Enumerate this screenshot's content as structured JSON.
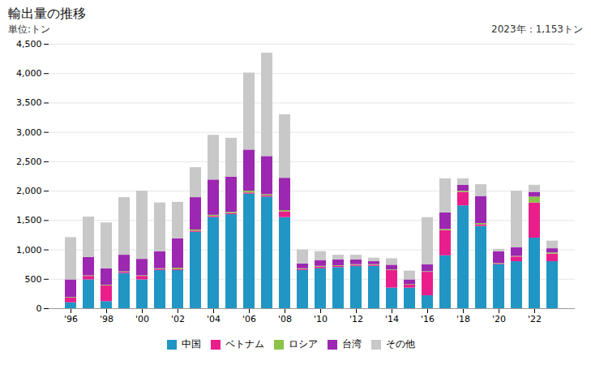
{
  "chart_data": {
    "type": "bar",
    "title": "輸出量の推移",
    "subtitle": "単位:トン",
    "annotation": "2023年：1,153トン",
    "stacked": true,
    "grid": true,
    "legend": "bottom",
    "categories": [
      "'96",
      null,
      "'98",
      null,
      "'00",
      null,
      "'02",
      null,
      "'04",
      null,
      "'06",
      null,
      "'08",
      null,
      "'10",
      null,
      "'12",
      null,
      "'14",
      null,
      "'16",
      null,
      "'18",
      null,
      "'20",
      null,
      "'22",
      null
    ],
    "series": [
      {
        "name": "中国",
        "color": "#2196c4",
        "values": [
          100,
          490,
          120,
          600,
          490,
          650,
          650,
          1300,
          1550,
          1600,
          1950,
          1900,
          1550,
          650,
          680,
          700,
          720,
          720,
          350,
          350,
          220,
          900,
          1750,
          1400,
          750,
          800,
          1200,
          800
        ]
      },
      {
        "name": "ベトナム",
        "color": "#e91e8c",
        "values": [
          80,
          60,
          270,
          20,
          60,
          20,
          20,
          20,
          20,
          20,
          20,
          20,
          100,
          20,
          30,
          20,
          20,
          20,
          300,
          50,
          400,
          430,
          230,
          30,
          10,
          80,
          600,
          130
        ]
      },
      {
        "name": "ロシア",
        "color": "#8bc34a",
        "values": [
          10,
          10,
          10,
          10,
          10,
          10,
          20,
          20,
          20,
          20,
          30,
          20,
          20,
          10,
          10,
          10,
          10,
          10,
          10,
          10,
          10,
          20,
          20,
          20,
          10,
          10,
          100,
          20
        ]
      },
      {
        "name": "台湾",
        "color": "#9c27b0",
        "values": [
          300,
          310,
          280,
          280,
          280,
          290,
          500,
          550,
          600,
          600,
          700,
          650,
          550,
          80,
          100,
          100,
          80,
          50,
          80,
          80,
          120,
          280,
          100,
          460,
          200,
          150,
          80,
          70
        ]
      },
      {
        "name": "その他",
        "color": "#c8c8c8",
        "values": [
          720,
          690,
          780,
          980,
          1160,
          830,
          620,
          510,
          760,
          660,
          1310,
          1760,
          1080,
          240,
          150,
          80,
          80,
          60,
          110,
          150,
          800,
          580,
          110,
          200,
          40,
          960,
          120,
          130
        ]
      }
    ],
    "ylim": [
      0,
      4500
    ],
    "yticks": [
      0,
      500,
      {
        "value": 1000,
        "label": "1,000"
      },
      {
        "value": 1500,
        "label": "1,500"
      },
      {
        "value": 2000,
        "label": "2,000"
      },
      {
        "value": 2500,
        "label": "2,500"
      },
      {
        "value": 3000,
        "label": "3,000"
      },
      {
        "value": 3500,
        "label": "3,500"
      },
      {
        "value": 4000,
        "label": "4,000"
      },
      {
        "value": 4500,
        "label": "4,500"
      }
    ]
  }
}
